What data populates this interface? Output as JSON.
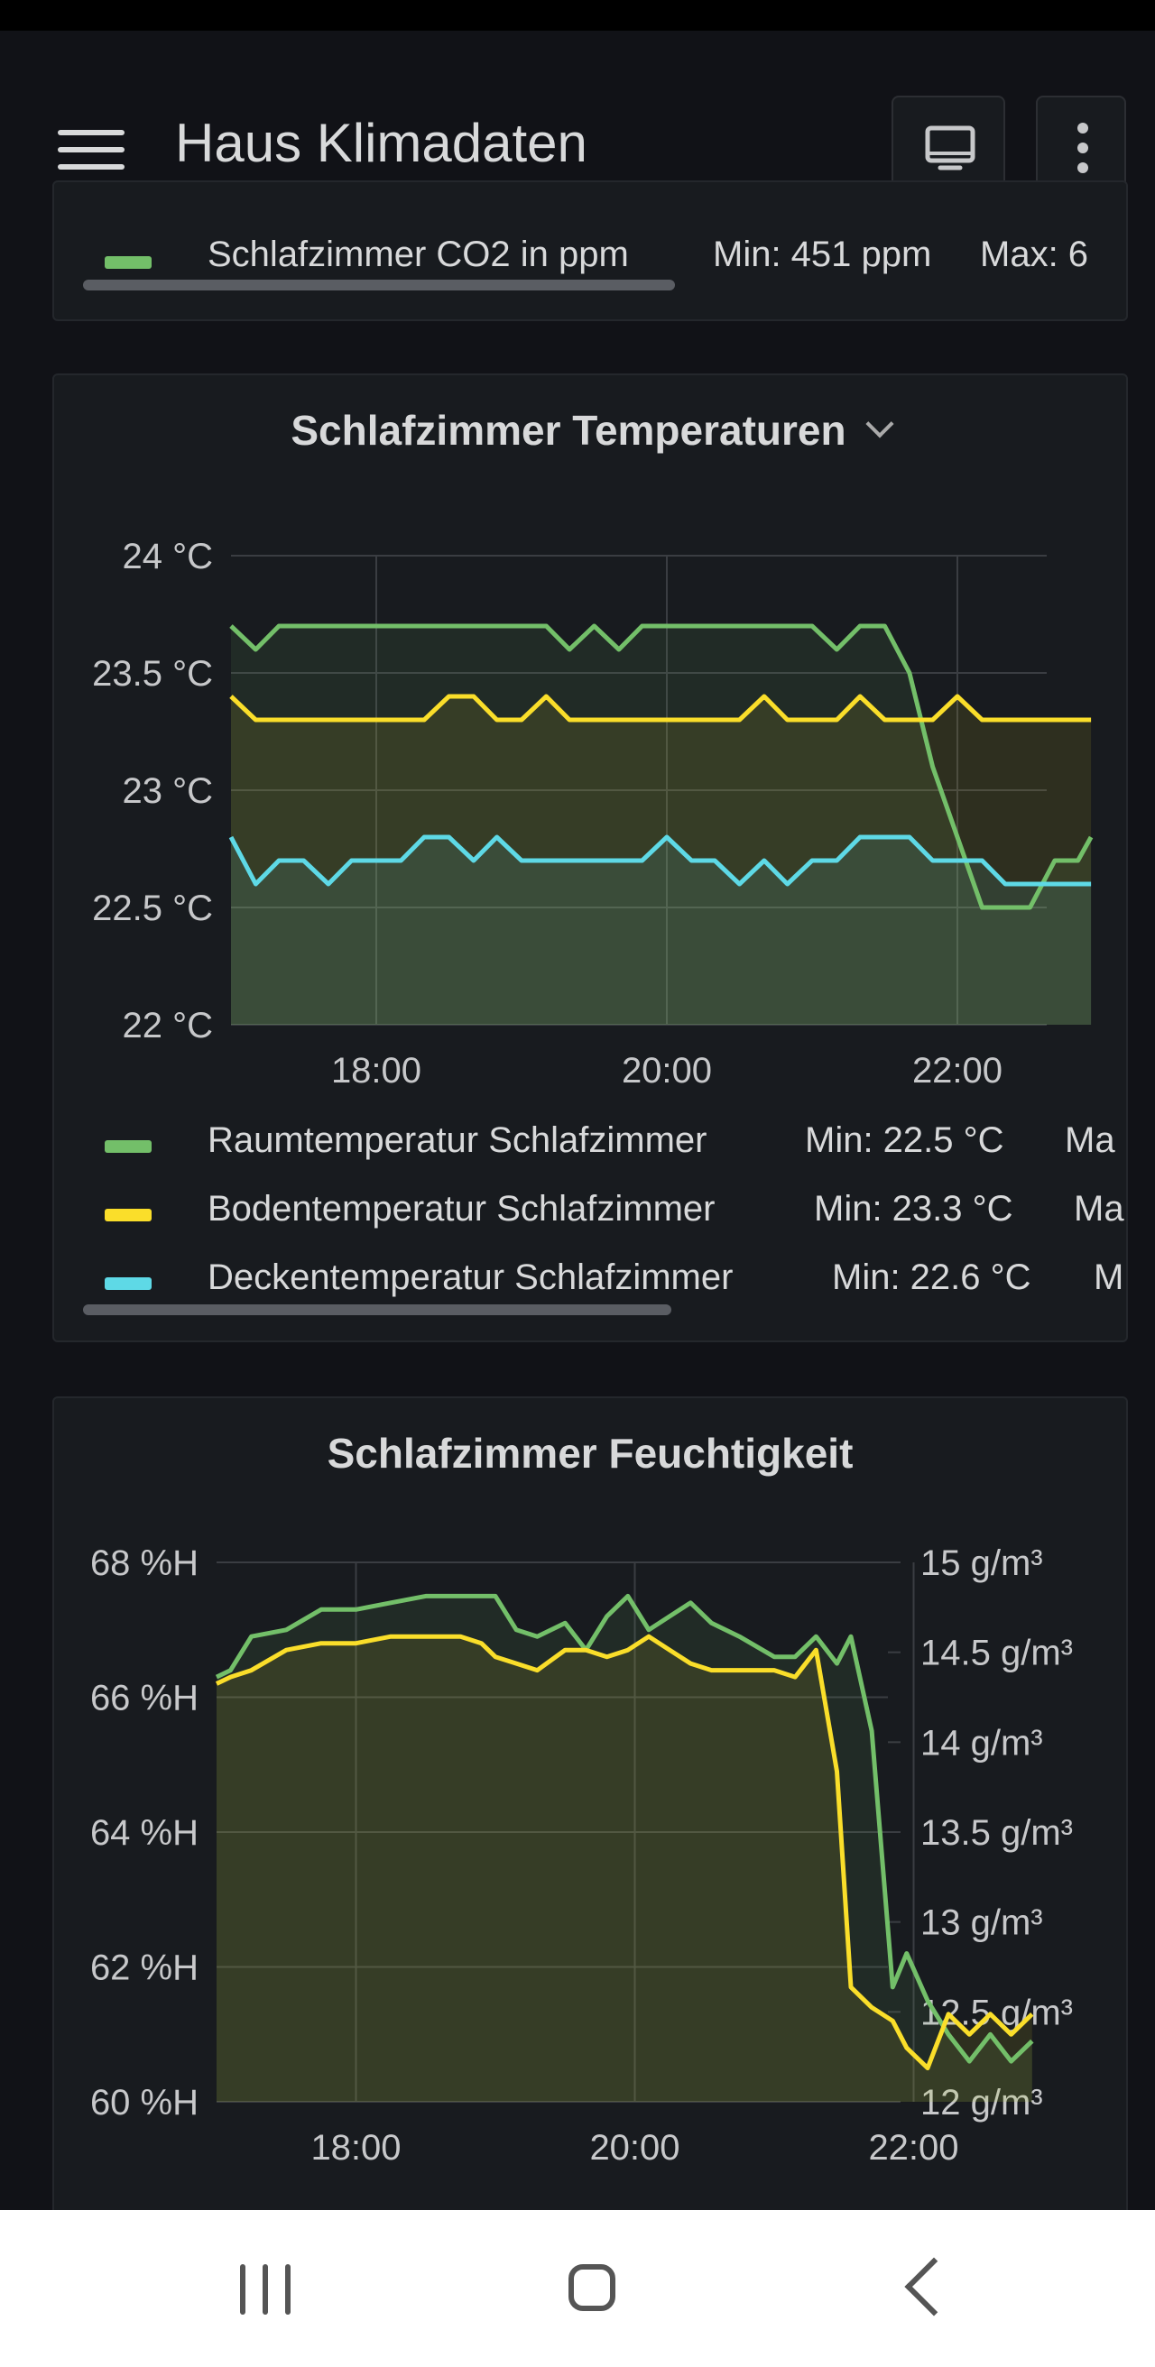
{
  "app": {
    "title": "Haus Klimadaten"
  },
  "toolbar": {
    "tv_icon": "tv-mode-icon",
    "more_icon": "more-vertical-icon"
  },
  "co2_panel": {
    "legend": [
      {
        "name": "Schlafzimmer CO2 in ppm",
        "min": "Min: 451 ppm",
        "max": "Max: 6",
        "color": "#73bf69"
      }
    ]
  },
  "temp_panel": {
    "title": "Schlafzimmer Temperaturen",
    "legend": [
      {
        "name": "Raumtemperatur Schlafzimmer",
        "min": "Min: 22.5 °C",
        "max": "Ma",
        "color": "#73bf69"
      },
      {
        "name": "Bodentemperatur Schlafzimmer",
        "min": "Min: 23.3 °C",
        "max": "Ma",
        "color": "#fade2a"
      },
      {
        "name": "Deckentemperatur Schlafzimmer",
        "min": "Min: 22.6 °C",
        "max": "M",
        "color": "#5ed9e6"
      }
    ]
  },
  "humidity_panel": {
    "title": "Schlafzimmer Feuchtigkeit"
  },
  "chart_data": [
    {
      "type": "line",
      "title": "Schlafzimmer Temperaturen",
      "x": [
        17.0,
        17.17,
        17.33,
        17.5,
        17.67,
        17.83,
        18.0,
        18.17,
        18.33,
        18.5,
        18.67,
        18.83,
        19.0,
        19.17,
        19.33,
        19.5,
        19.67,
        19.83,
        20.0,
        20.17,
        20.33,
        20.5,
        20.67,
        20.83,
        21.0,
        21.17,
        21.33,
        21.5,
        21.67,
        21.83,
        22.0,
        22.17,
        22.33,
        22.5,
        22.67,
        22.83,
        22.92
      ],
      "x_ticks": [
        "18:00",
        "20:00",
        "22:00"
      ],
      "x_tick_values": [
        18,
        20,
        22
      ],
      "xlim": [
        17.0,
        23.0
      ],
      "y_ticks": [
        "22 °C",
        "22.5 °C",
        "23 °C",
        "23.5 °C",
        "24 °C"
      ],
      "y_tick_values": [
        22,
        22.5,
        23,
        23.5,
        24
      ],
      "ylim": [
        22,
        24
      ],
      "series": [
        {
          "name": "Raumtemperatur Schlafzimmer",
          "color": "#73bf69",
          "values": [
            23.7,
            23.6,
            23.7,
            23.7,
            23.7,
            23.7,
            23.7,
            23.7,
            23.7,
            23.7,
            23.7,
            23.7,
            23.7,
            23.7,
            23.6,
            23.7,
            23.6,
            23.7,
            23.7,
            23.7,
            23.7,
            23.7,
            23.7,
            23.7,
            23.7,
            23.6,
            23.7,
            23.7,
            23.5,
            23.1,
            22.8,
            22.5,
            22.5,
            22.5,
            22.7,
            22.7,
            22.8
          ]
        },
        {
          "name": "Bodentemperatur Schlafzimmer",
          "color": "#fade2a",
          "values": [
            23.4,
            23.3,
            23.3,
            23.3,
            23.3,
            23.3,
            23.3,
            23.3,
            23.3,
            23.4,
            23.4,
            23.3,
            23.3,
            23.4,
            23.3,
            23.3,
            23.3,
            23.3,
            23.3,
            23.3,
            23.3,
            23.3,
            23.4,
            23.3,
            23.3,
            23.3,
            23.4,
            23.3,
            23.3,
            23.3,
            23.4,
            23.3,
            23.3,
            23.3,
            23.3,
            23.3,
            23.3
          ]
        },
        {
          "name": "Deckentemperatur Schlafzimmer",
          "color": "#5ed9e6",
          "values": [
            22.8,
            22.6,
            22.7,
            22.7,
            22.6,
            22.7,
            22.7,
            22.7,
            22.8,
            22.8,
            22.7,
            22.8,
            22.7,
            22.7,
            22.7,
            22.7,
            22.7,
            22.7,
            22.8,
            22.7,
            22.7,
            22.6,
            22.7,
            22.6,
            22.7,
            22.7,
            22.8,
            22.8,
            22.8,
            22.7,
            22.7,
            22.7,
            22.6,
            22.6,
            22.6,
            22.6,
            22.6
          ]
        }
      ]
    },
    {
      "type": "line",
      "title": "Schlafzimmer Feuchtigkeit",
      "x": [
        17.0,
        17.1,
        17.25,
        17.5,
        17.75,
        18.0,
        18.25,
        18.5,
        18.75,
        18.9,
        19.0,
        19.15,
        19.3,
        19.5,
        19.65,
        19.8,
        19.95,
        20.1,
        20.25,
        20.4,
        20.55,
        20.75,
        21.0,
        21.15,
        21.3,
        21.45,
        21.55,
        21.7,
        21.85,
        21.95,
        22.1,
        22.25,
        22.4,
        22.55,
        22.7,
        22.85
      ],
      "x_ticks": [
        "18:00",
        "20:00",
        "22:00"
      ],
      "x_tick_values": [
        18,
        20,
        22
      ],
      "xlim": [
        17.0,
        23.0
      ],
      "y_ticks": [
        "60 %H",
        "62 %H",
        "64 %H",
        "66 %H",
        "68 %H"
      ],
      "y_tick_values": [
        60,
        62,
        64,
        66,
        68
      ],
      "ylim": [
        60,
        68
      ],
      "y2_ticks": [
        "12 g/m³",
        "12.5 g/m³",
        "13 g/m³",
        "13.5 g/m³",
        "14 g/m³",
        "14.5 g/m³",
        "15 g/m³"
      ],
      "y2_tick_values": [
        12,
        12.5,
        13,
        13.5,
        14,
        14.5,
        15
      ],
      "y2lim": [
        12,
        15
      ],
      "series": [
        {
          "name": "",
          "color": "#73bf69",
          "values": [
            66.3,
            66.4,
            66.9,
            67.0,
            67.3,
            67.3,
            67.4,
            67.5,
            67.5,
            67.5,
            67.5,
            67.0,
            66.9,
            67.1,
            66.7,
            67.2,
            67.5,
            67.0,
            67.2,
            67.4,
            67.1,
            66.9,
            66.6,
            66.6,
            66.9,
            66.5,
            66.9,
            65.5,
            61.7,
            62.2,
            61.5,
            61.0,
            60.6,
            61.0,
            60.6,
            60.9
          ]
        },
        {
          "name": "",
          "color": "#fade2a",
          "values": [
            66.2,
            66.3,
            66.4,
            66.7,
            66.8,
            66.8,
            66.9,
            66.9,
            66.9,
            66.8,
            66.6,
            66.5,
            66.4,
            66.7,
            66.7,
            66.6,
            66.7,
            66.9,
            66.7,
            66.5,
            66.4,
            66.4,
            66.4,
            66.3,
            66.7,
            64.9,
            61.7,
            61.4,
            61.2,
            60.8,
            60.5,
            61.3,
            61.0,
            61.3,
            61.0,
            61.3
          ]
        }
      ]
    }
  ]
}
